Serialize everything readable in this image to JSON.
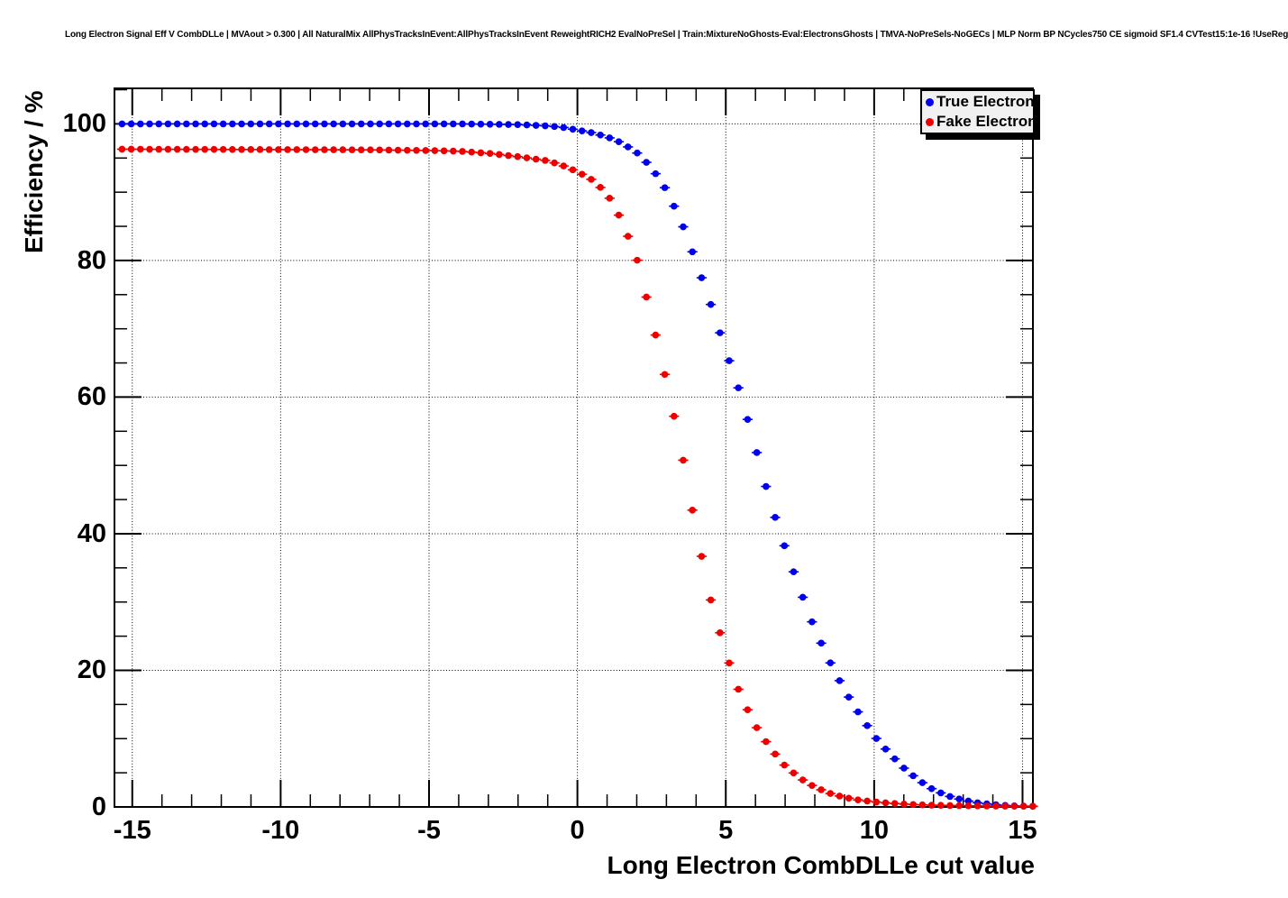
{
  "header": {
    "title": "Long Electron Signal Eff V CombDLLe | MVAout > 0.300 | All NaturalMix AllPhysTracksInEvent:AllPhysTracksInEvent ReweightRICH2 EvalNoPreSel | Train:MixtureNoGhosts-Eval:ElectronsGhosts | TMVA-NoPreSels-NoGECs | MLP Norm BP NCycles750 CE sigmoid SF1.4 CVTest15:1e-16 !UseReg"
  },
  "chart_data": {
    "type": "scatter",
    "title": "",
    "xlabel": "Long Electron CombDLLe cut value",
    "ylabel": "Efficiency / %",
    "xlim": [
      -15.6,
      15.35
    ],
    "ylim": [
      0,
      105.2
    ],
    "x_major_ticks": [
      -15,
      -10,
      -5,
      0,
      5,
      10,
      15
    ],
    "x_tick_labels": [
      "-15",
      "-10",
      "-5",
      "0",
      "5",
      "10",
      "15"
    ],
    "x_minor_step": 1,
    "y_major_ticks": [
      0,
      20,
      40,
      60,
      80,
      100
    ],
    "y_tick_labels": [
      "0",
      "20",
      "40",
      "60",
      "80",
      "100"
    ],
    "y_minor_step": 5,
    "grid": "dotted",
    "grid_color": "#000000",
    "frame_color": "#000000",
    "marker_start": -15.345,
    "marker_step": 0.31,
    "marker_count": 100,
    "legend": {
      "position": "top-right",
      "fill": "#f1f1f1",
      "entries": [
        {
          "label": "True Electron",
          "color": "#0000ee"
        },
        {
          "label": "Fake Electron",
          "color": "#ee0000"
        }
      ]
    },
    "series": [
      {
        "name": "True Electron",
        "color": "#0000ee",
        "control_points": [
          [
            -15.5,
            100
          ],
          [
            -4,
            100
          ],
          [
            -3,
            99.95
          ],
          [
            -2,
            99.9
          ],
          [
            -1,
            99.7
          ],
          [
            -0.5,
            99.5
          ],
          [
            0,
            99.1
          ],
          [
            0.5,
            98.7
          ],
          [
            1,
            98.1
          ],
          [
            1.5,
            97.2
          ],
          [
            2,
            95.8
          ],
          [
            2.5,
            93.6
          ],
          [
            3,
            90.3
          ],
          [
            3.5,
            85.7
          ],
          [
            4,
            79.8
          ],
          [
            4.5,
            73.5
          ],
          [
            5,
            66.8
          ],
          [
            5.5,
            60.4
          ],
          [
            6,
            52.6
          ],
          [
            6.5,
            44.6
          ],
          [
            7,
            37.9
          ],
          [
            7.5,
            31.8
          ],
          [
            8,
            26
          ],
          [
            8.5,
            21.3
          ],
          [
            9,
            17.1
          ],
          [
            9.5,
            13.6
          ],
          [
            10,
            10.4
          ],
          [
            10.5,
            7.9
          ],
          [
            11,
            5.7
          ],
          [
            11.5,
            3.9
          ],
          [
            12,
            2.5
          ],
          [
            12.5,
            1.6
          ],
          [
            13,
            1
          ],
          [
            13.5,
            0.6
          ],
          [
            14,
            0.35
          ],
          [
            14.5,
            0.2
          ],
          [
            15,
            0.12
          ],
          [
            15.5,
            0.08
          ]
        ]
      },
      {
        "name": "Fake Electron",
        "color": "#ee0000",
        "control_points": [
          [
            -15.5,
            96.3
          ],
          [
            -7,
            96.2
          ],
          [
            -5,
            96.1
          ],
          [
            -4,
            96
          ],
          [
            -3,
            95.7
          ],
          [
            -2,
            95.2
          ],
          [
            -1,
            94.6
          ],
          [
            -0.5,
            93.9
          ],
          [
            0,
            93
          ],
          [
            0.5,
            91.8
          ],
          [
            1,
            89.8
          ],
          [
            1.5,
            85.8
          ],
          [
            2,
            80.3
          ],
          [
            2.5,
            71.6
          ],
          [
            3,
            62.3
          ],
          [
            3.5,
            52.3
          ],
          [
            4,
            40.5
          ],
          [
            4.5,
            30.2
          ],
          [
            5,
            22.5
          ],
          [
            5.5,
            16.3
          ],
          [
            6,
            11.9
          ],
          [
            6.5,
            8.6
          ],
          [
            7,
            6
          ],
          [
            7.5,
            4.2
          ],
          [
            8,
            2.9
          ],
          [
            8.5,
            2
          ],
          [
            9,
            1.4
          ],
          [
            9.5,
            1
          ],
          [
            10,
            0.75
          ],
          [
            10.5,
            0.55
          ],
          [
            11,
            0.42
          ],
          [
            11.5,
            0.32
          ],
          [
            12,
            0.25
          ],
          [
            13,
            0.18
          ],
          [
            14,
            0.12
          ],
          [
            15.5,
            0.1
          ]
        ]
      }
    ]
  }
}
